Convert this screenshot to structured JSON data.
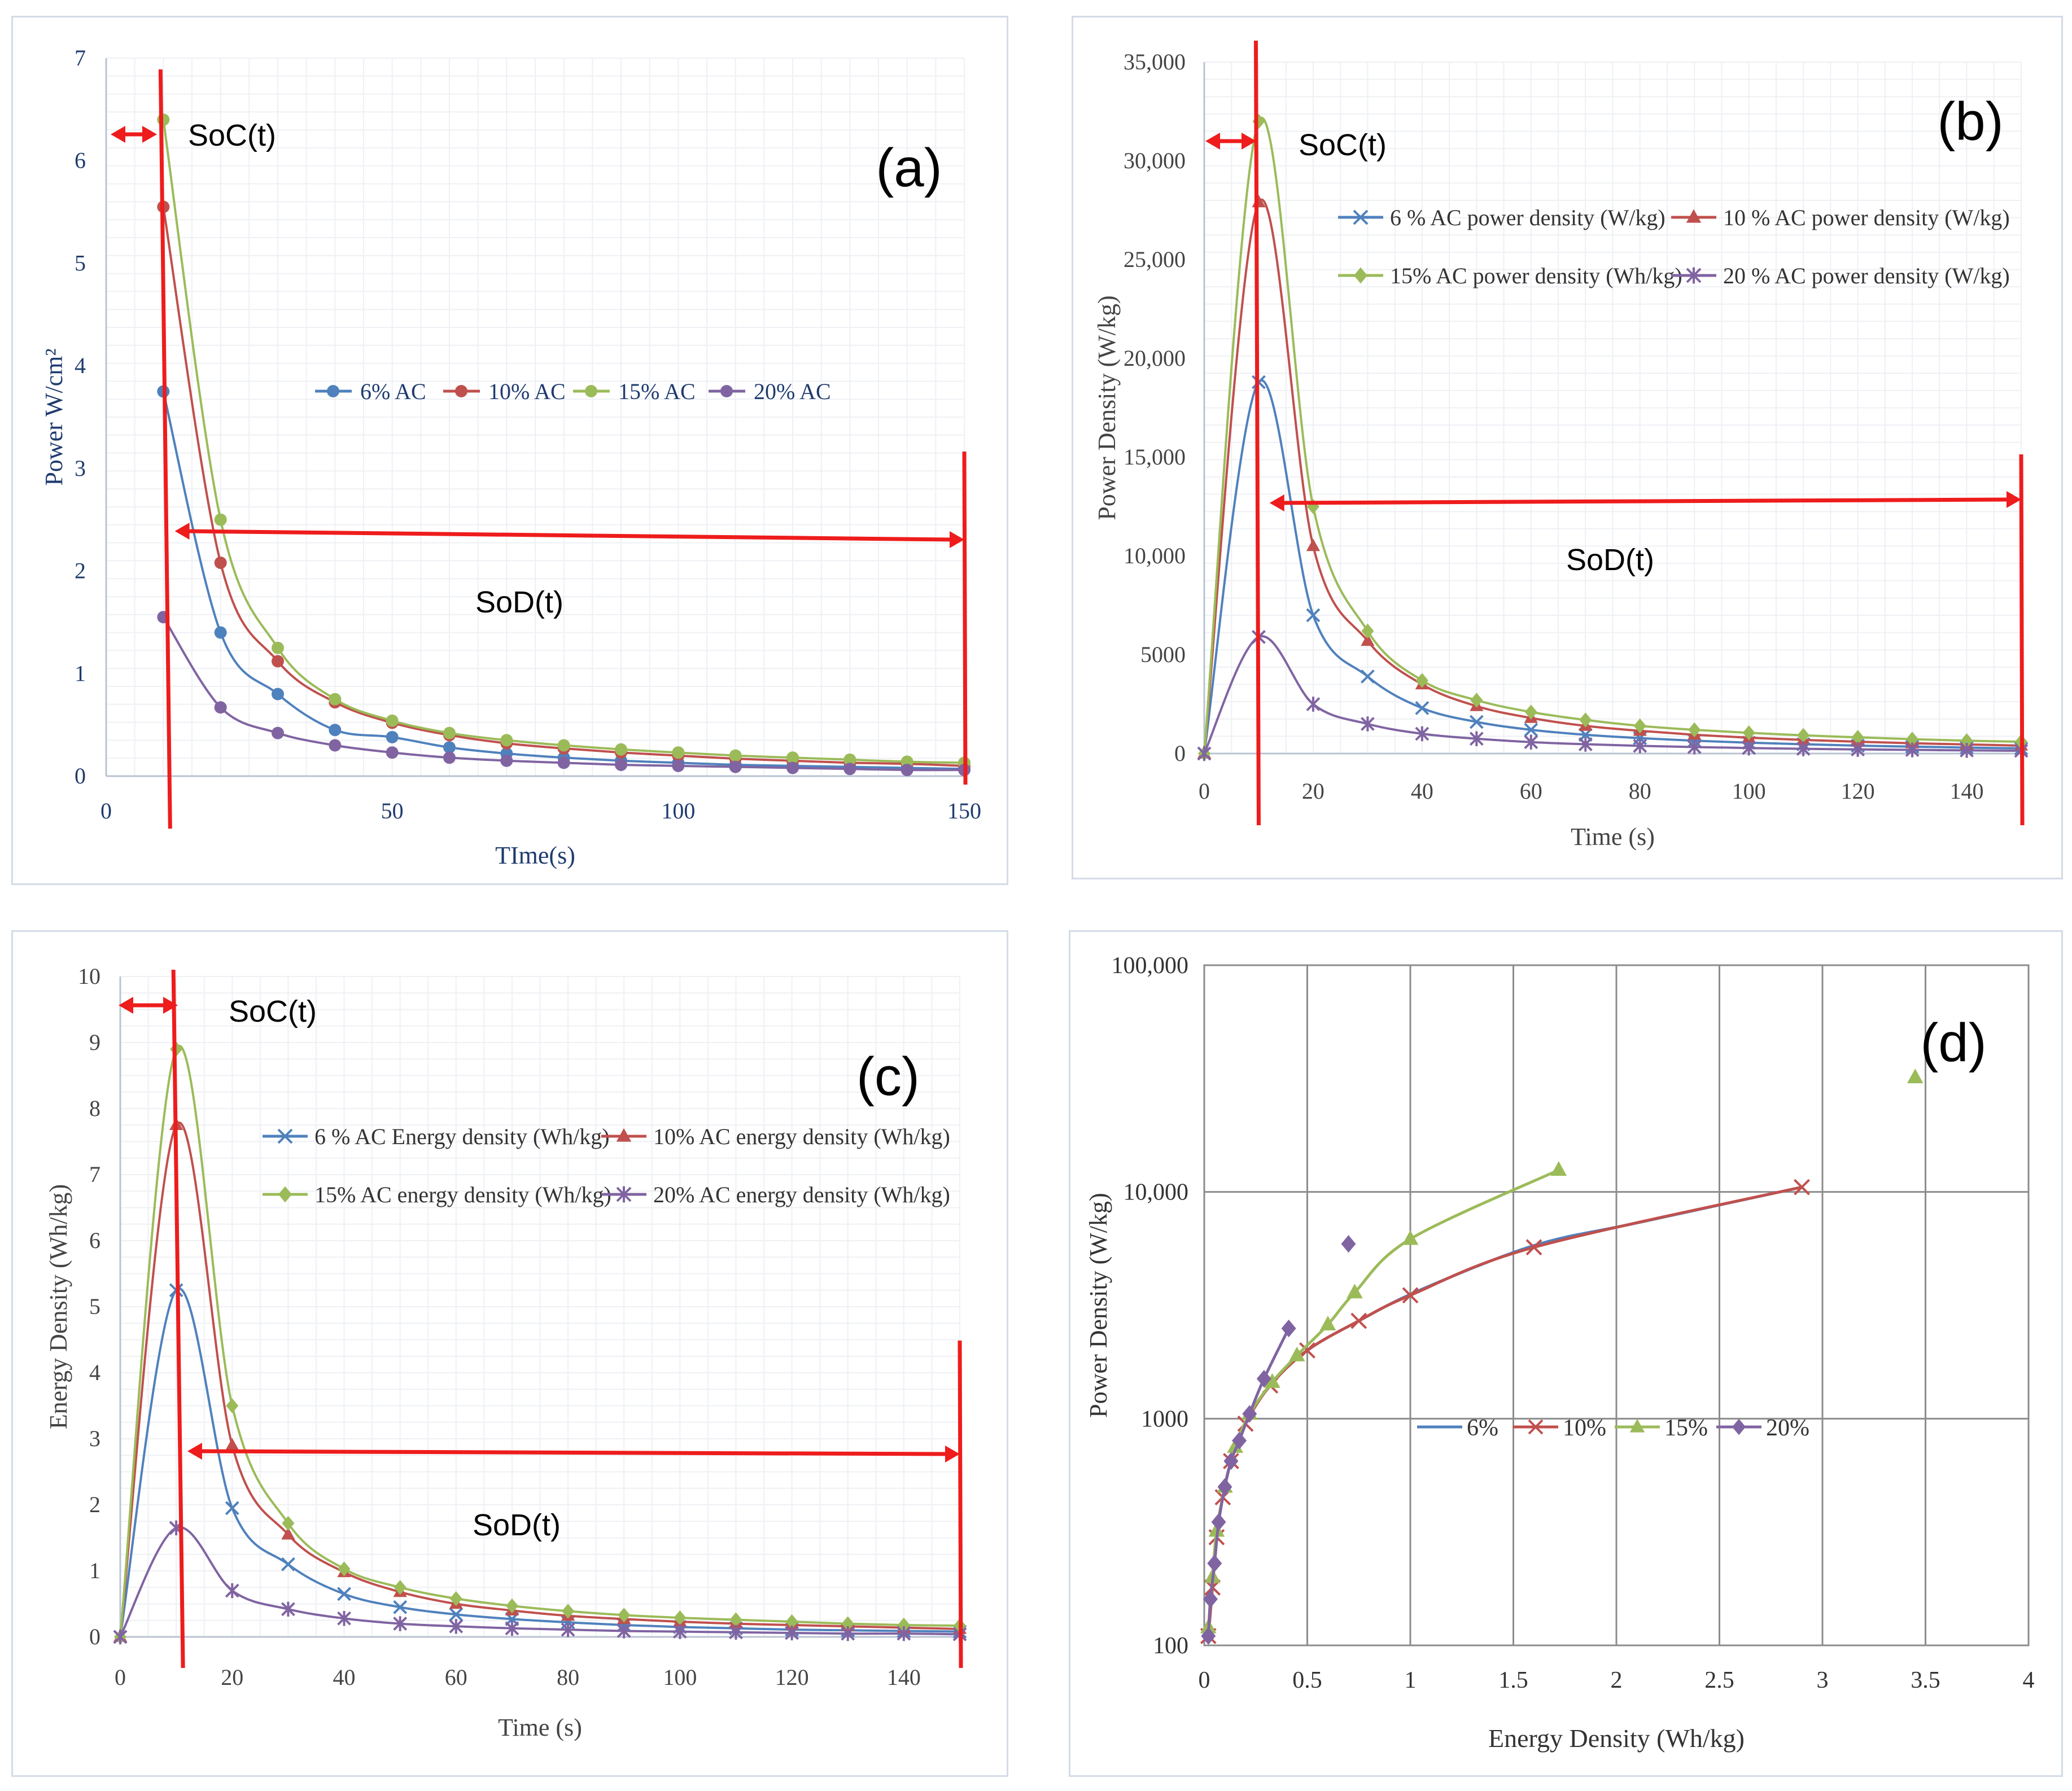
{
  "colors": {
    "s6": "#4f81bd",
    "s10": "#c0504d",
    "s15": "#9bbb59",
    "s20": "#8064a2",
    "annot": "#ee1c1c",
    "axis_a": "#1f3b6e",
    "axis": "#444444"
  },
  "annotations": {
    "soc": "SoC(t)",
    "sod": "SoD(t)"
  },
  "chart_data": [
    {
      "id": "a",
      "type": "line",
      "panel_label": "(a)",
      "xlabel": "TIme(s)",
      "ylabel": "Power W/cm²",
      "xlim": [
        0,
        150
      ],
      "ylim": [
        0,
        7
      ],
      "xticks": [
        0,
        50,
        100,
        150
      ],
      "yticks": [
        0,
        1,
        2,
        3,
        4,
        5,
        6,
        7
      ],
      "grid": true,
      "legend": "center",
      "soc_range": [
        0,
        10
      ],
      "sod_range": [
        12,
        150
      ],
      "x": [
        10,
        20,
        30,
        40,
        50,
        60,
        70,
        80,
        90,
        100,
        110,
        120,
        130,
        140,
        150
      ],
      "series": [
        {
          "name": "6% AC",
          "marker": "circle",
          "values": [
            3.75,
            1.4,
            0.8,
            0.45,
            0.38,
            0.28,
            0.22,
            0.18,
            0.15,
            0.13,
            0.11,
            0.1,
            0.09,
            0.08,
            0.07
          ]
        },
        {
          "name": "10% AC",
          "marker": "circle",
          "values": [
            5.55,
            2.08,
            1.12,
            0.72,
            0.52,
            0.4,
            0.32,
            0.27,
            0.23,
            0.2,
            0.17,
            0.15,
            0.13,
            0.12,
            0.1
          ]
        },
        {
          "name": "15% AC",
          "marker": "circle",
          "values": [
            6.4,
            2.5,
            1.25,
            0.75,
            0.54,
            0.42,
            0.35,
            0.3,
            0.26,
            0.23,
            0.2,
            0.18,
            0.16,
            0.14,
            0.13
          ]
        },
        {
          "name": "20% AC",
          "marker": "circle",
          "values": [
            1.55,
            0.67,
            0.42,
            0.3,
            0.23,
            0.18,
            0.15,
            0.13,
            0.11,
            0.1,
            0.09,
            0.08,
            0.07,
            0.06,
            0.06
          ]
        }
      ]
    },
    {
      "id": "b",
      "type": "line",
      "panel_label": "(b)",
      "xlabel": "Time (s)",
      "ylabel": "Power Density (W/kg)",
      "xlim": [
        0,
        150
      ],
      "ylim": [
        0,
        35000
      ],
      "xticks": [
        0,
        20,
        40,
        60,
        80,
        100,
        120,
        140
      ],
      "yticks": [
        0,
        5000,
        10000,
        15000,
        20000,
        25000,
        30000,
        35000
      ],
      "ytick_labels": [
        "0",
        "5000",
        "10,000",
        "15,000",
        "20,000",
        "25,000",
        "30,000",
        "35,000"
      ],
      "grid": true,
      "legend": "top-right",
      "soc_range": [
        0,
        10
      ],
      "sod_range": [
        12,
        150
      ],
      "x": [
        0,
        10,
        20,
        30,
        40,
        50,
        60,
        70,
        80,
        90,
        100,
        110,
        120,
        130,
        140,
        150
      ],
      "series": [
        {
          "name": "6 % AC power density (W/kg)",
          "marker": "x",
          "values": [
            0,
            18800,
            7000,
            3900,
            2300,
            1600,
            1200,
            950,
            780,
            650,
            550,
            470,
            400,
            350,
            300,
            260
          ]
        },
        {
          "name": "10 % AC power density (W/kg)",
          "marker": "triangle",
          "values": [
            0,
            27900,
            10500,
            5700,
            3500,
            2400,
            1800,
            1400,
            1150,
            950,
            800,
            690,
            600,
            520,
            460,
            400
          ]
        },
        {
          "name": "15% AC power density (Wh/kg)",
          "marker": "diamond",
          "values": [
            0,
            32000,
            12500,
            6200,
            3700,
            2700,
            2100,
            1700,
            1400,
            1200,
            1050,
            920,
            820,
            730,
            650,
            600
          ]
        },
        {
          "name": "20 % AC power density (W/kg)",
          "marker": "star",
          "values": [
            0,
            5900,
            2500,
            1500,
            1000,
            750,
            580,
            470,
            390,
            330,
            280,
            240,
            210,
            185,
            160,
            140
          ]
        }
      ]
    },
    {
      "id": "c",
      "type": "line",
      "panel_label": "(c)",
      "xlabel": "Time (s)",
      "ylabel": "Energy Density (Wh/kg)",
      "xlim": [
        0,
        150
      ],
      "ylim": [
        0,
        10
      ],
      "xticks": [
        0,
        20,
        40,
        60,
        80,
        100,
        120,
        140
      ],
      "yticks": [
        0,
        1,
        2,
        3,
        4,
        5,
        6,
        7,
        8,
        9,
        10
      ],
      "grid": true,
      "legend": "top-right",
      "soc_range": [
        0,
        10
      ],
      "sod_range": [
        12,
        150
      ],
      "x": [
        0,
        10,
        20,
        30,
        40,
        50,
        60,
        70,
        80,
        90,
        100,
        110,
        120,
        130,
        140,
        150
      ],
      "series": [
        {
          "name": "6 % AC Energy density (Wh/kg)",
          "marker": "x",
          "values": [
            0,
            5.25,
            1.95,
            1.1,
            0.65,
            0.45,
            0.34,
            0.27,
            0.22,
            0.18,
            0.15,
            0.13,
            0.11,
            0.1,
            0.09,
            0.08
          ]
        },
        {
          "name": "10% AC energy density (Wh/kg)",
          "marker": "triangle",
          "values": [
            0,
            7.75,
            2.9,
            1.55,
            0.98,
            0.68,
            0.5,
            0.4,
            0.32,
            0.27,
            0.23,
            0.2,
            0.18,
            0.16,
            0.14,
            0.12
          ]
        },
        {
          "name": "15% AC energy density (Wh/kg)",
          "marker": "diamond",
          "values": [
            0,
            8.9,
            3.5,
            1.72,
            1.03,
            0.75,
            0.58,
            0.47,
            0.39,
            0.33,
            0.29,
            0.26,
            0.23,
            0.2,
            0.18,
            0.17
          ]
        },
        {
          "name": "20% AC energy density (Wh/kg)",
          "marker": "star",
          "values": [
            0,
            1.65,
            0.7,
            0.42,
            0.28,
            0.2,
            0.16,
            0.13,
            0.11,
            0.09,
            0.08,
            0.07,
            0.06,
            0.05,
            0.05,
            0.04
          ]
        }
      ]
    },
    {
      "id": "d",
      "type": "scatter",
      "panel_label": "(d)",
      "xlabel": "Energy Density (Wh/kg)",
      "ylabel": "Power Density (W/kg)",
      "xlim": [
        0,
        4
      ],
      "ylim": [
        100,
        100000
      ],
      "yscale": "log",
      "xticks": [
        0,
        0.5,
        1,
        1.5,
        2,
        2.5,
        3,
        3.5,
        4
      ],
      "xtick_labels": [
        "0",
        "0.5",
        "1",
        "1.5",
        "2",
        "2.5",
        "3",
        "3.5",
        "4"
      ],
      "yticks": [
        100,
        1000,
        10000,
        100000
      ],
      "ytick_labels": [
        "100",
        "1000",
        "10,000",
        "100,000"
      ],
      "grid": true,
      "legend": "center-right",
      "series": [
        {
          "name": "6%",
          "marker": "none",
          "points": [
            [
              0.02,
              110
            ],
            [
              0.04,
              180
            ],
            [
              0.06,
              300
            ],
            [
              0.09,
              450
            ],
            [
              0.13,
              650
            ],
            [
              0.2,
              950
            ],
            [
              0.32,
              1400
            ],
            [
              0.5,
              2000
            ],
            [
              0.75,
              2700
            ],
            [
              1.05,
              3700
            ],
            [
              1.6,
              5800
            ],
            [
              2.1,
              7300
            ],
            [
              2.9,
              10500
            ]
          ]
        },
        {
          "name": "10%",
          "marker": "x",
          "points": [
            [
              0.02,
              110
            ],
            [
              0.04,
              180
            ],
            [
              0.06,
              300
            ],
            [
              0.09,
              450
            ],
            [
              0.13,
              650
            ],
            [
              0.2,
              950
            ],
            [
              0.32,
              1400
            ],
            [
              0.5,
              2000
            ],
            [
              0.75,
              2700
            ],
            [
              1.0,
              3500
            ],
            [
              1.6,
              5700
            ],
            [
              2.9,
              10500
            ]
          ]
        },
        {
          "name": "15%",
          "marker": "triangle",
          "points": [
            [
              0.02,
              120
            ],
            [
              0.04,
              200
            ],
            [
              0.06,
              320
            ],
            [
              0.1,
              500
            ],
            [
              0.15,
              750
            ],
            [
              0.22,
              1050
            ],
            [
              0.33,
              1450
            ],
            [
              0.45,
              1900
            ],
            [
              0.6,
              2600
            ],
            [
              0.73,
              3600
            ],
            [
              1.0,
              6200
            ],
            [
              1.72,
              12500
            ]
          ],
          "outlier": [
            3.45,
            32000
          ]
        },
        {
          "name": "20%",
          "marker": "diamond",
          "points": [
            [
              0.02,
              110
            ],
            [
              0.03,
              160
            ],
            [
              0.05,
              230
            ],
            [
              0.07,
              350
            ],
            [
              0.1,
              500
            ],
            [
              0.13,
              650
            ],
            [
              0.17,
              800
            ],
            [
              0.22,
              1050
            ],
            [
              0.29,
              1500
            ],
            [
              0.41,
              2500
            ]
          ],
          "outlier": [
            0.7,
            5900
          ]
        }
      ]
    }
  ]
}
